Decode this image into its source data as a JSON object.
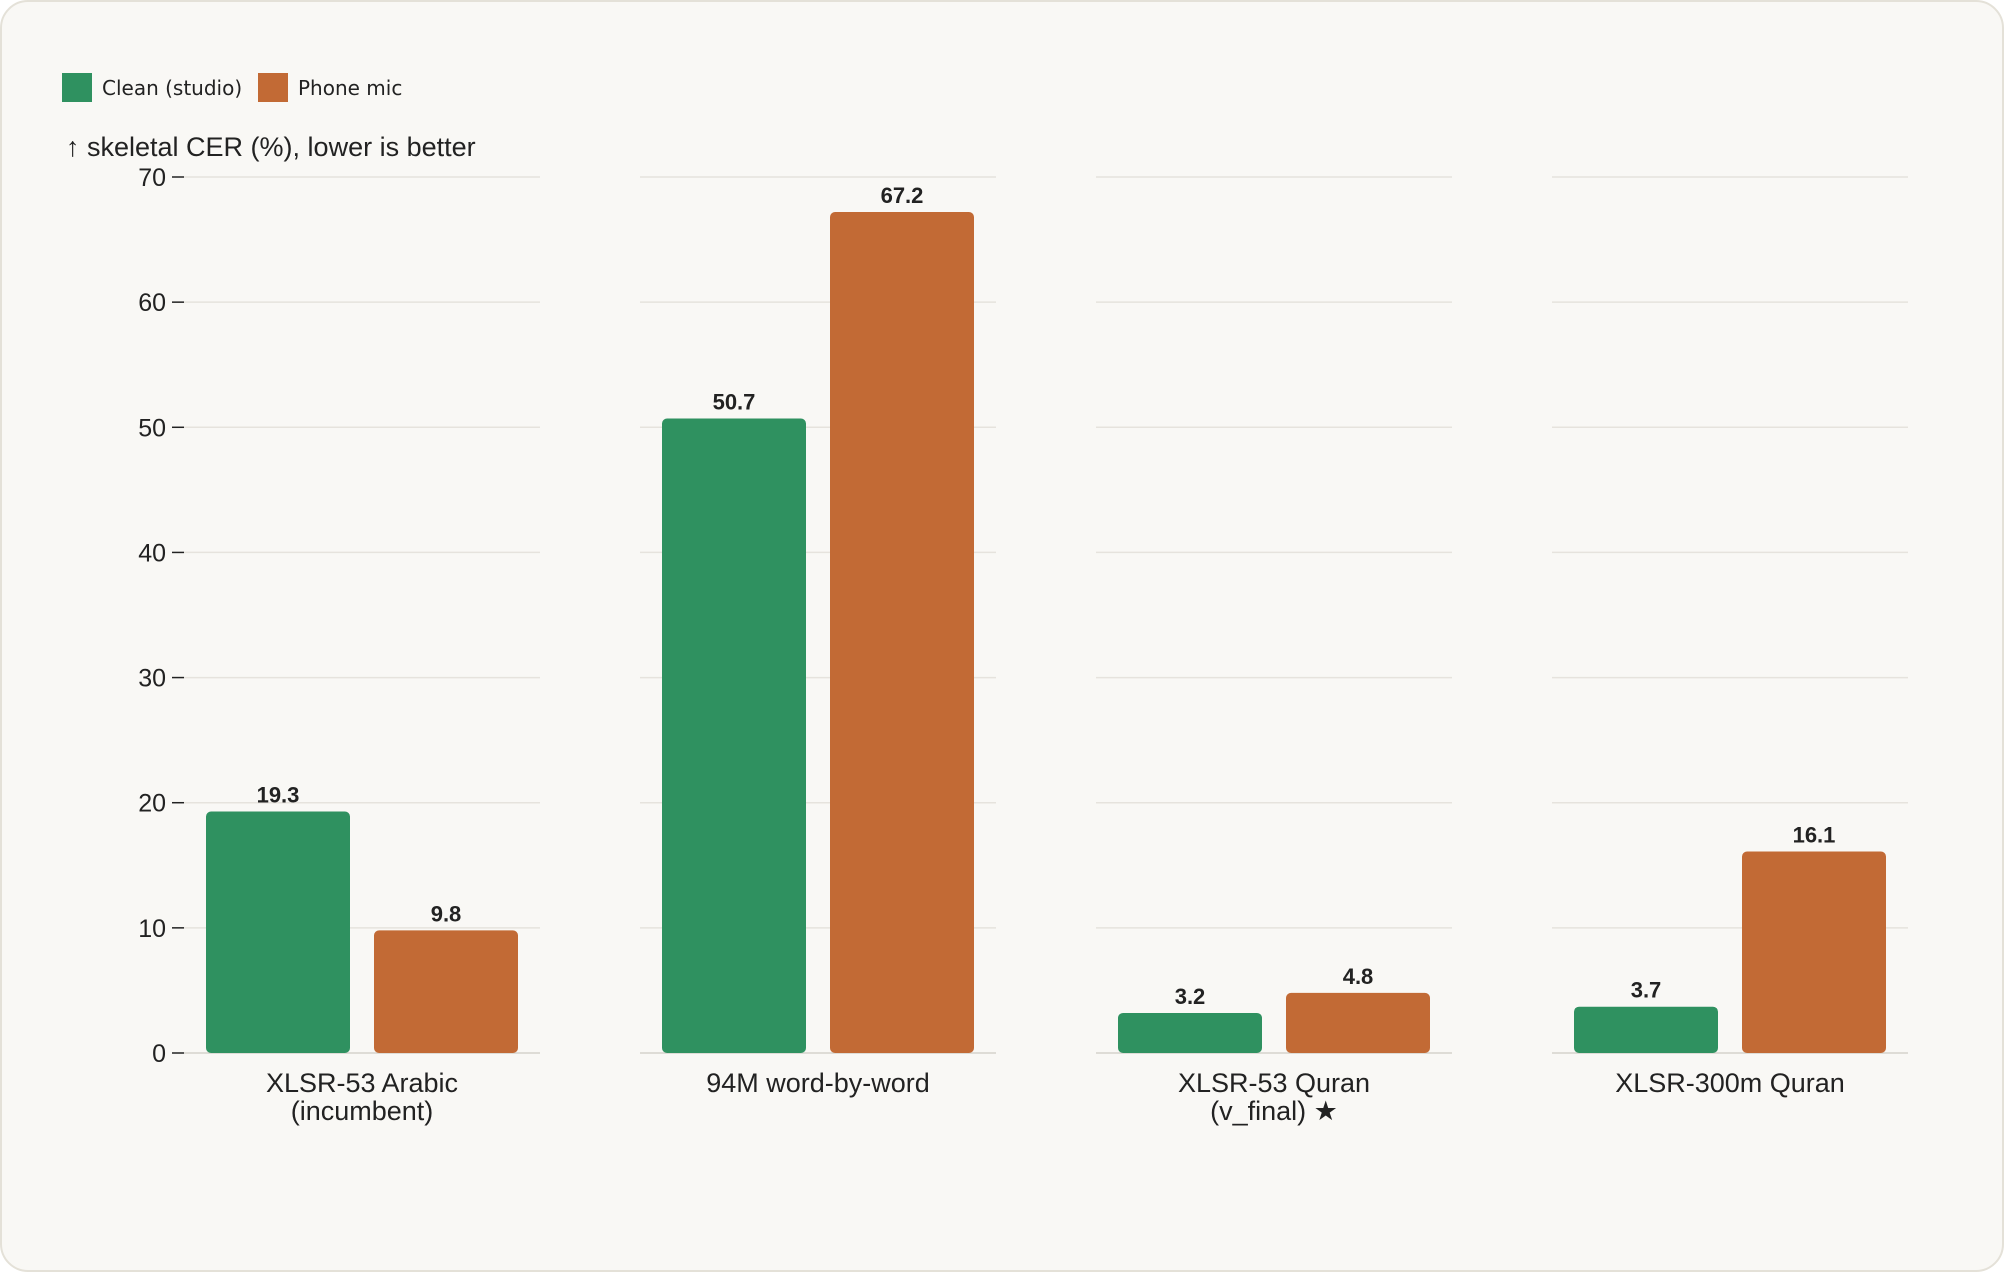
{
  "chart_data": {
    "type": "bar",
    "title": "",
    "ylabel": "↑ skeletal CER (%), lower is better",
    "xlabel": "",
    "ylim": [
      0,
      70
    ],
    "yticks": [
      0,
      10,
      20,
      30,
      40,
      50,
      60,
      70
    ],
    "grid": true,
    "legend_position": "top-left",
    "categories": [
      [
        "XLSR-53 Arabic",
        "(incumbent)"
      ],
      [
        "94M word-by-word"
      ],
      [
        "XLSR-53 Quran",
        "(v_final) ★"
      ],
      [
        "XLSR-300m Quran"
      ]
    ],
    "series": [
      {
        "name": "Clean (studio)",
        "color": "#2f9160",
        "values": [
          19.3,
          50.7,
          3.2,
          3.7
        ]
      },
      {
        "name": "Phone mic",
        "color": "#c26a35",
        "values": [
          9.8,
          67.2,
          4.8,
          16.1
        ]
      }
    ]
  }
}
